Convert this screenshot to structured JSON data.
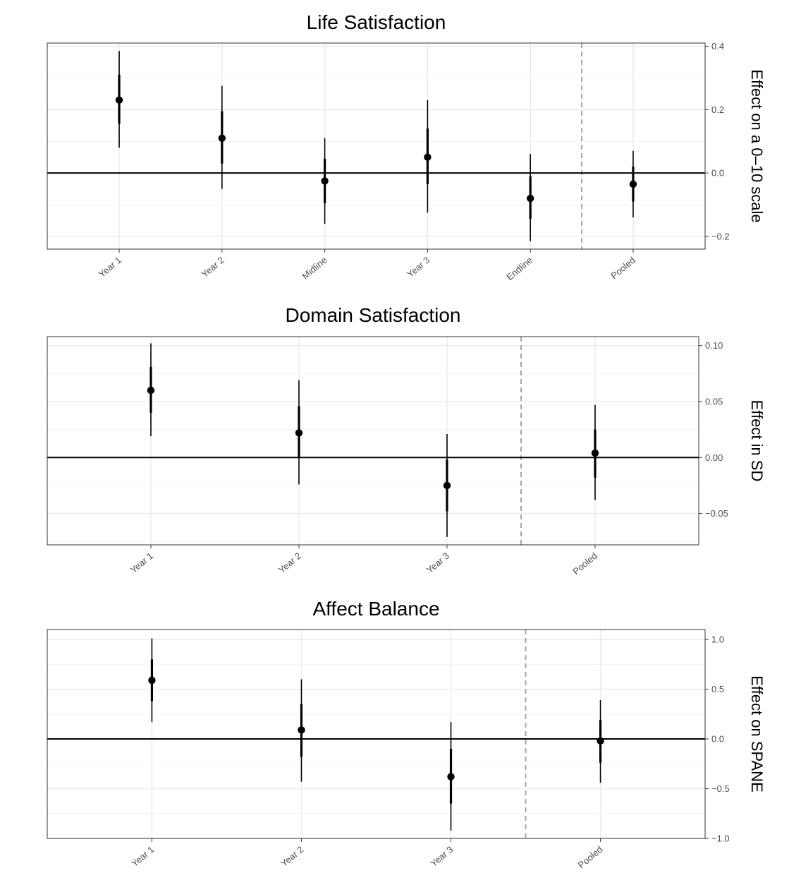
{
  "chart_data": [
    {
      "type": "scatter",
      "title": "Life Satisfaction",
      "ylabel": "Effect on a 0–10 scale",
      "y_axis_side": "right",
      "categories": [
        "Year 1",
        "Year 2",
        "Midline",
        "Year 3",
        "Endline",
        "Pooled"
      ],
      "ylim": [
        -0.24,
        0.41
      ],
      "yticks": [
        -0.2,
        0.0,
        0.2,
        0.4
      ],
      "ytick_labels": [
        "−0.2",
        "0.0",
        "0.2",
        "0.4"
      ],
      "grid": true,
      "reference_line_y": 0,
      "separator_between": [
        "Endline",
        "Pooled"
      ],
      "series": [
        {
          "estimate": [
            0.23,
            0.11,
            -0.025,
            0.05,
            -0.08,
            -0.035
          ],
          "ci_inner": [
            [
              0.155,
              0.31
            ],
            [
              0.03,
              0.195
            ],
            [
              -0.095,
              0.045
            ],
            [
              -0.035,
              0.14
            ],
            [
              -0.145,
              -0.01
            ],
            [
              -0.09,
              0.02
            ]
          ],
          "ci_outer": [
            [
              0.08,
              0.385
            ],
            [
              -0.05,
              0.275
            ],
            [
              -0.16,
              0.11
            ],
            [
              -0.125,
              0.23
            ],
            [
              -0.215,
              0.06
            ],
            [
              -0.14,
              0.07
            ]
          ]
        }
      ]
    },
    {
      "type": "scatter",
      "title": "Domain Satisfaction",
      "ylabel": "Effect in SD",
      "y_axis_side": "right",
      "categories": [
        "Year 1",
        "Year 2",
        "Year 3",
        "Pooled"
      ],
      "ylim": [
        -0.078,
        0.108
      ],
      "yticks": [
        -0.05,
        0.0,
        0.05,
        0.1
      ],
      "ytick_labels": [
        "−0.05",
        "0.00",
        "0.05",
        "0.10"
      ],
      "grid": true,
      "reference_line_y": 0,
      "separator_between": [
        "Year 3",
        "Pooled"
      ],
      "series": [
        {
          "estimate": [
            0.06,
            0.022,
            -0.025,
            0.004
          ],
          "ci_inner": [
            [
              0.04,
              0.081
            ],
            [
              0.0,
              0.046
            ],
            [
              -0.048,
              -0.002
            ],
            [
              -0.018,
              0.025
            ]
          ],
          "ci_outer": [
            [
              0.019,
              0.102
            ],
            [
              -0.024,
              0.069
            ],
            [
              -0.071,
              0.021
            ],
            [
              -0.038,
              0.047
            ]
          ]
        }
      ]
    },
    {
      "type": "scatter",
      "title": "Affect Balance",
      "ylabel": "Effect on SPANE",
      "y_axis_side": "right",
      "categories": [
        "Year 1",
        "Year 2",
        "Year 3",
        "Pooled"
      ],
      "ylim": [
        -1.0,
        1.1
      ],
      "yticks": [
        -1.0,
        -0.5,
        0.0,
        0.5,
        1.0
      ],
      "ytick_labels": [
        "−1.0",
        "−0.5",
        "0.0",
        "0.5",
        "1.0"
      ],
      "grid": true,
      "reference_line_y": 0,
      "separator_between": [
        "Year 3",
        "Pooled"
      ],
      "series": [
        {
          "estimate": [
            0.59,
            0.09,
            -0.38,
            -0.02
          ],
          "ci_inner": [
            [
              0.38,
              0.8
            ],
            [
              -0.18,
              0.35
            ],
            [
              -0.65,
              -0.1
            ],
            [
              -0.24,
              0.19
            ]
          ],
          "ci_outer": [
            [
              0.17,
              1.01
            ],
            [
              -0.43,
              0.6
            ],
            [
              -0.92,
              0.17
            ],
            [
              -0.44,
              0.39
            ]
          ]
        }
      ]
    }
  ]
}
